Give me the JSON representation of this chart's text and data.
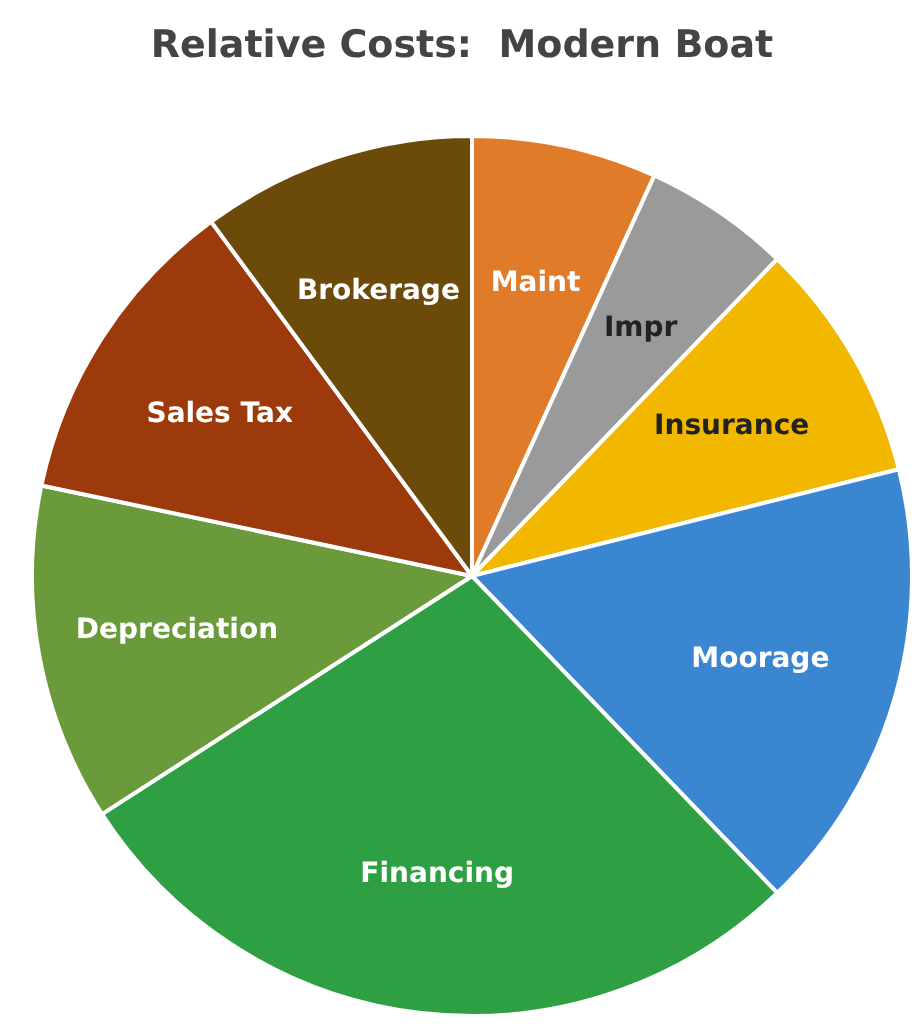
{
  "chart_data": {
    "type": "pie",
    "title": "Relative Costs:  Modern Boat",
    "categories": [
      "Maint",
      "Impr",
      "Insurance",
      "Moorage",
      "Financing",
      "Depreciation",
      "Sales Tax",
      "Brokerage"
    ],
    "values": [
      6.8,
      5.4,
      8.9,
      16.7,
      28.1,
      12.4,
      11.6,
      10.1
    ],
    "colors": [
      "#e07b2a",
      "#9a9a9a",
      "#f2b800",
      "#3a86d0",
      "#2ea043",
      "#6a9a3a",
      "#9c3a0c",
      "#6b4a0a"
    ],
    "legend": false
  }
}
